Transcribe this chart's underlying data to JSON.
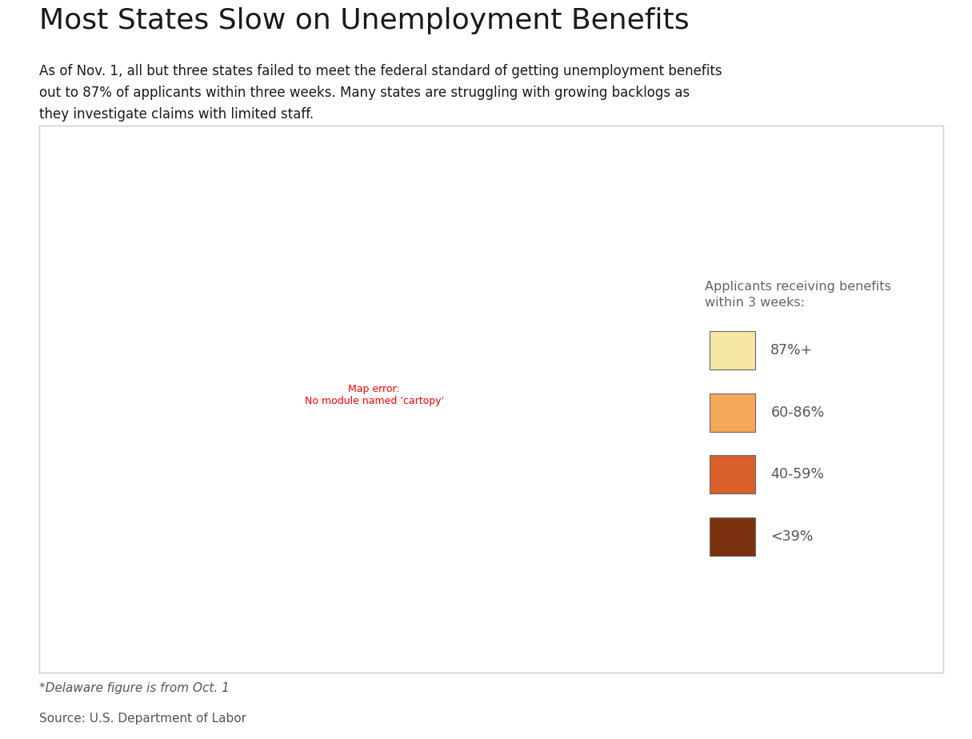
{
  "title": "Most States Slow on Unemployment Benefits",
  "subtitle": "As of Nov. 1, all but three states failed to meet the federal standard of getting unemployment benefits\nout to 87% of applicants within three weeks. Many states are struggling with growing backlogs as\nthey investigate claims with limited staff.",
  "footer1": "*Delaware figure is from Oct. 1",
  "footer2": "Source: U.S. Department of Labor",
  "legend_title": "Applicants receiving benefits\nwithin 3 weeks:",
  "legend_labels": [
    "87%+",
    "60-86%",
    "40-59%",
    "<39%"
  ],
  "legend_colors": [
    "#f5e6a3",
    "#f5a85a",
    "#d95f2b",
    "#7b3010"
  ],
  "background_color": "#ffffff",
  "map_bg": "#ffffff",
  "border_color": "#696969",
  "map_border_color": "#cccccc",
  "state_colors": {
    "AL": "#f5a85a",
    "AK": "#f5a85a",
    "AZ": "#f5a85a",
    "AR": "#f5a85a",
    "CA": "#d95f2b",
    "CO": "#f5e6a3",
    "CT": "#d95f2b",
    "DE": "#f5a85a",
    "FL": "#d95f2b",
    "GA": "#d95f2b",
    "HI": "#d95f2b",
    "ID": "#f5a85a",
    "IL": "#f5a85a",
    "IN": "#f5a85a",
    "IA": "#f5a85a",
    "KS": "#f5a85a",
    "KY": "#7b3010",
    "LA": "#d95f2b",
    "ME": "#d95f2b",
    "MD": "#d95f2b",
    "MA": "#d95f2b",
    "MI": "#7b3010",
    "MN": "#f5a85a",
    "MS": "#f5a85a",
    "MO": "#f5a85a",
    "MT": "#f5a85a",
    "NE": "#f5a85a",
    "NV": "#f5a85a",
    "NH": "#d95f2b",
    "NJ": "#d95f2b",
    "NM": "#f5a85a",
    "NY": "#d95f2b",
    "NC": "#f5a85a",
    "ND": "#f5e6a3",
    "OH": "#f5a85a",
    "OK": "#d95f2b",
    "OR": "#7b3010",
    "PA": "#d95f2b",
    "RI": "#d95f2b",
    "SC": "#d95f2b",
    "SD": "#7b3010",
    "TN": "#f5a85a",
    "TX": "#f5a85a",
    "UT": "#f5a85a",
    "VT": "#f5a85a",
    "VA": "#f5a85a",
    "WA": "#d95f2b",
    "WV": "#f5a85a",
    "WI": "#7b3010",
    "WY": "#f5e6a3"
  }
}
